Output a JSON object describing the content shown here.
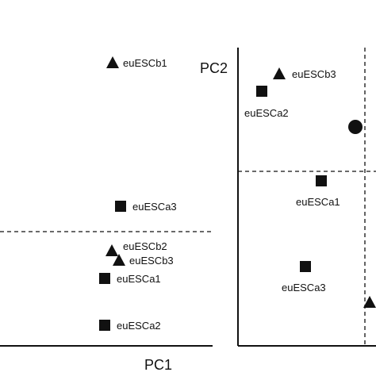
{
  "chart_data": [
    {
      "type": "scatter",
      "panel": "left",
      "xlabel": "PC1",
      "ylabel": "",
      "points": [
        {
          "label": "euESCb1",
          "marker": "triangle"
        },
        {
          "label": "euESCa3",
          "marker": "square"
        },
        {
          "label": "euESCb2",
          "marker": "triangle"
        },
        {
          "label": "euESCb3",
          "marker": "triangle"
        },
        {
          "label": "euESCa1",
          "marker": "square"
        },
        {
          "label": "euESCa2",
          "marker": "square"
        }
      ],
      "reference_lines": [
        "horizontal-dashed"
      ]
    },
    {
      "type": "scatter",
      "panel": "right",
      "xlabel": "",
      "ylabel": "PC2",
      "points": [
        {
          "label": "euESCb3",
          "marker": "triangle"
        },
        {
          "label": "euESCa2",
          "marker": "square"
        },
        {
          "label": "",
          "marker": "circle"
        },
        {
          "label": "euESCa1",
          "marker": "square"
        },
        {
          "label": "euESCa3",
          "marker": "square"
        },
        {
          "label": "",
          "marker": "triangle"
        }
      ],
      "reference_lines": [
        "horizontal-dashed",
        "vertical-dashed"
      ]
    }
  ]
}
